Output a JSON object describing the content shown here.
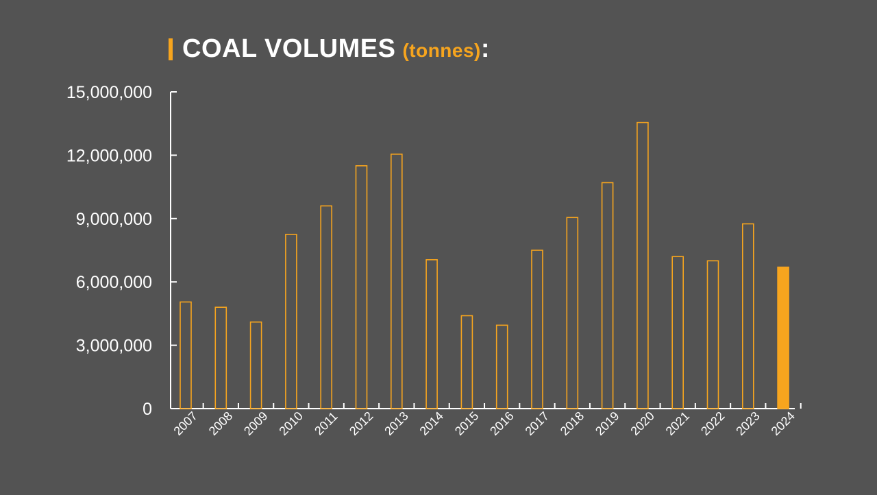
{
  "title": {
    "main": "COAL VOLUMES",
    "unit": "(tonnes)",
    "colon": ":"
  },
  "colors": {
    "background": "#535353",
    "accent": "#f7a51e",
    "text": "#ffffff",
    "axis": "#ffffff"
  },
  "chart_data": {
    "type": "bar",
    "title": "COAL VOLUMES (tonnes):",
    "xlabel": "",
    "ylabel": "",
    "categories": [
      "2007",
      "2008",
      "2009",
      "2010",
      "2011",
      "2012",
      "2013",
      "2014",
      "2015",
      "2016",
      "2017",
      "2018",
      "2019",
      "2020",
      "2021",
      "2022",
      "2023",
      "2024"
    ],
    "values": [
      5050000,
      4800000,
      4100000,
      8250000,
      9600000,
      11500000,
      12050000,
      7050000,
      4400000,
      3950000,
      7500000,
      9050000,
      10700000,
      13550000,
      7200000,
      7000000,
      8750000,
      6700000
    ],
    "ylim": [
      0,
      15000000
    ],
    "yticks": [
      0,
      3000000,
      6000000,
      9000000,
      12000000,
      15000000
    ],
    "ytick_labels": [
      "0",
      "3,000,000",
      "6,000,000",
      "9,000,000",
      "12,000,000",
      "15,000,000"
    ],
    "highlight_last_bar": true,
    "bar_style": "outlined",
    "grid": false,
    "legend": "none"
  }
}
